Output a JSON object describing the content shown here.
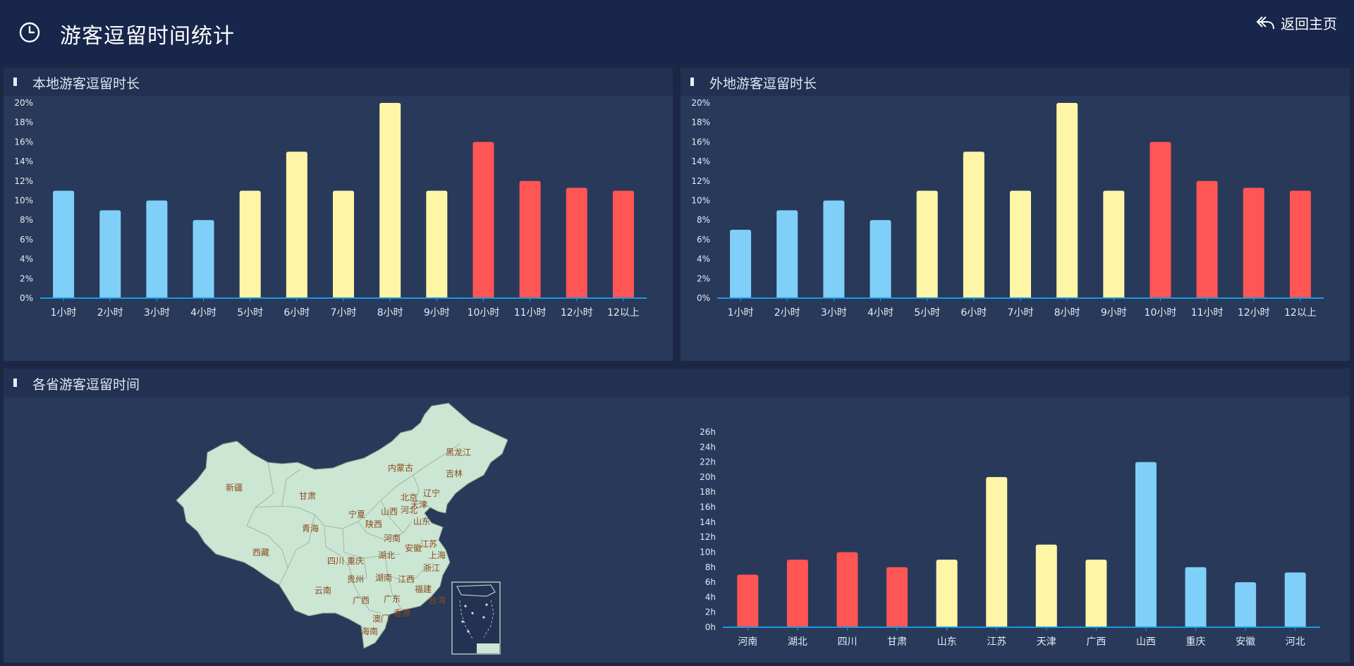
{
  "header": {
    "title": "游客逗留时间统计",
    "back_label": "返回主页",
    "icons": [
      "clock-icon",
      "reply-arrow-icon"
    ]
  },
  "colors": {
    "blue": "#80cff8",
    "yellow": "#fff5a6",
    "red": "#ff5555",
    "axis": "#1a9ae0",
    "label": "#e6ecf5"
  },
  "panels": {
    "local": {
      "title": "本地游客逗留时长"
    },
    "remote": {
      "title": "外地游客逗留时长"
    },
    "province": {
      "title": "各省游客逗留时间"
    }
  },
  "chart_data": [
    {
      "id": "local",
      "type": "bar",
      "title": "本地游客逗留时长",
      "categories": [
        "1小时",
        "2小时",
        "3小时",
        "4小时",
        "5小时",
        "6小时",
        "7小时",
        "8小时",
        "9小时",
        "10小时",
        "11小时",
        "12小时",
        "12以上"
      ],
      "values": [
        11,
        9,
        10,
        8,
        11,
        15,
        11,
        20,
        11,
        16,
        12,
        11.3,
        11
      ],
      "color_groups": [
        "blue",
        "blue",
        "blue",
        "blue",
        "yellow",
        "yellow",
        "yellow",
        "yellow",
        "yellow",
        "red",
        "red",
        "red",
        "red"
      ],
      "ylim": [
        0,
        20
      ],
      "yticks": [
        "0%",
        "2%",
        "4%",
        "6%",
        "8%",
        "10%",
        "12%",
        "14%",
        "16%",
        "18%",
        "20%"
      ],
      "grid": false
    },
    {
      "id": "remote",
      "type": "bar",
      "title": "外地游客逗留时长",
      "categories": [
        "1小时",
        "2小时",
        "3小时",
        "4小时",
        "5小时",
        "6小时",
        "7小时",
        "8小时",
        "9小时",
        "10小时",
        "11小时",
        "12小时",
        "12以上"
      ],
      "values": [
        7,
        9,
        10,
        8,
        11,
        15,
        11,
        20,
        11,
        16,
        12,
        11.3,
        11
      ],
      "color_groups": [
        "blue",
        "blue",
        "blue",
        "blue",
        "yellow",
        "yellow",
        "yellow",
        "yellow",
        "yellow",
        "red",
        "red",
        "red",
        "red"
      ],
      "ylim": [
        0,
        20
      ],
      "yticks": [
        "0%",
        "2%",
        "4%",
        "6%",
        "8%",
        "10%",
        "12%",
        "14%",
        "16%",
        "18%",
        "20%"
      ],
      "grid": false
    },
    {
      "id": "province",
      "type": "bar",
      "title": "各省游客逗留时间",
      "categories": [
        "河南",
        "湖北",
        "四川",
        "甘肃",
        "山东",
        "江苏",
        "天津",
        "广西",
        "山西",
        "重庆",
        "安徽",
        "河北"
      ],
      "values": [
        7,
        9,
        10,
        8,
        9,
        20,
        11,
        9,
        22,
        8,
        6,
        7.3
      ],
      "color_groups": [
        "red",
        "red",
        "red",
        "red",
        "yellow",
        "yellow",
        "yellow",
        "yellow",
        "blue",
        "blue",
        "blue",
        "blue"
      ],
      "ylim": [
        0,
        26
      ],
      "yticks": [
        "0h",
        "2h",
        "4h",
        "6h",
        "8h",
        "10h",
        "12h",
        "14h",
        "16h",
        "18h",
        "20h",
        "22h",
        "24h",
        "26h"
      ],
      "grid": false
    }
  ],
  "map": {
    "provinces": [
      "黑龙江",
      "吉林",
      "辽宁",
      "内蒙古",
      "北京",
      "天津",
      "河北",
      "山西",
      "山东",
      "宁夏",
      "陕西",
      "甘肃",
      "新疆",
      "青海",
      "西藏",
      "四川",
      "重庆",
      "河南",
      "湖北",
      "安徽",
      "江苏",
      "上海",
      "浙江",
      "湖南",
      "江西",
      "福建",
      "贵州",
      "云南",
      "广西",
      "广东",
      "澳门",
      "香港",
      "台湾",
      "海南"
    ]
  }
}
